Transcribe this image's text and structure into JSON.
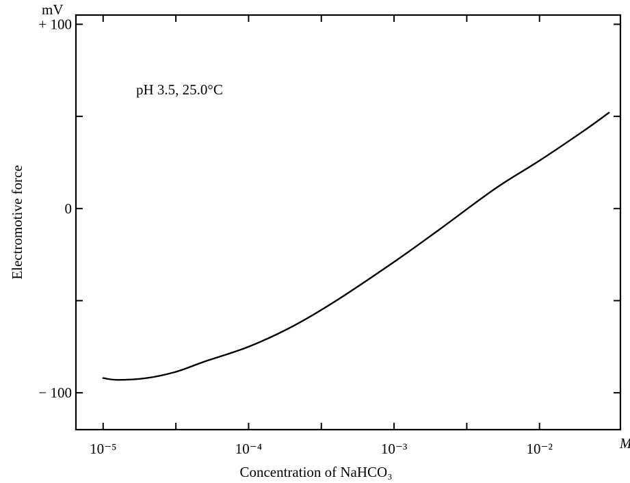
{
  "chart_data": {
    "type": "line",
    "title": "",
    "annotation": "pH 3.5, 25.0°C",
    "xlabel": "Concentration of NaHCO₃",
    "x_unit": "M",
    "ylabel": "Electromotive force",
    "y_unit": "mV",
    "x_scale": "log",
    "xlim": [
      6.5e-06,
      0.036
    ],
    "ylim": [
      -120,
      105
    ],
    "x_ticks": [
      {
        "value": 1e-05,
        "label": "10⁻⁵"
      },
      {
        "value": 0.0001,
        "label": "10⁻⁴"
      },
      {
        "value": 0.001,
        "label": "10⁻³"
      },
      {
        "value": 0.01,
        "label": "10⁻²"
      }
    ],
    "y_ticks": [
      {
        "value": 100,
        "label": "+ 100"
      },
      {
        "value": 50,
        "label": ""
      },
      {
        "value": 0,
        "label": "0"
      },
      {
        "value": -50,
        "label": ""
      },
      {
        "value": -100,
        "label": "− 100"
      }
    ],
    "grid": false,
    "series": [
      {
        "x": [
          1e-05,
          1.26e-05,
          2e-05,
          3.2e-05,
          5e-05,
          0.0001,
          0.0002,
          0.0004,
          0.001,
          0.002,
          0.005,
          0.01,
          0.02,
          0.03
        ],
        "y": [
          -92,
          -93,
          -92,
          -88.5,
          -83,
          -75,
          -64,
          -50,
          -29,
          -12,
          11,
          26,
          42,
          52
        ]
      }
    ]
  }
}
